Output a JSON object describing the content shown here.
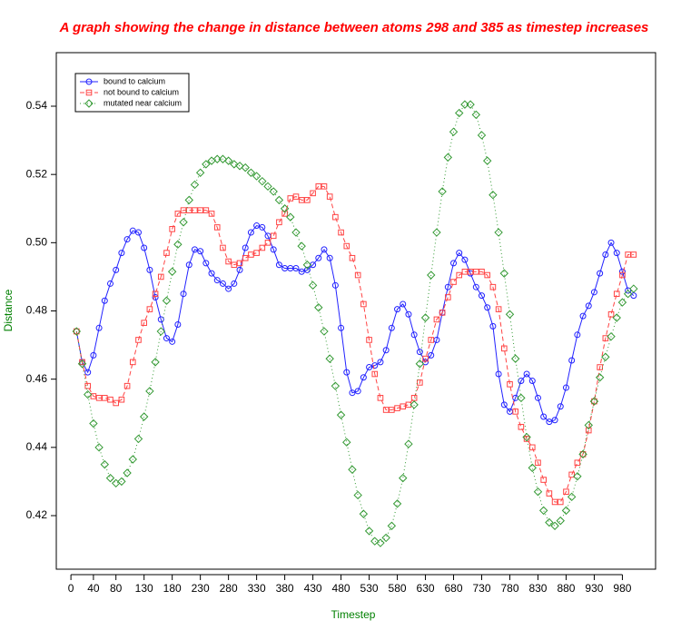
{
  "chart_data": {
    "type": "line",
    "title": "A graph showing the change in distance between atoms 298 and 385 as timestep increases",
    "x_label": "Timestep",
    "y_label": "Distance",
    "x": [
      10,
      20,
      30,
      40,
      50,
      60,
      70,
      80,
      90,
      100,
      110,
      120,
      130,
      140,
      150,
      160,
      170,
      180,
      190,
      200,
      210,
      220,
      230,
      240,
      250,
      260,
      270,
      280,
      290,
      300,
      310,
      320,
      330,
      340,
      350,
      360,
      370,
      380,
      390,
      400,
      410,
      420,
      430,
      440,
      450,
      460,
      470,
      480,
      490,
      500,
      510,
      520,
      530,
      540,
      550,
      560,
      570,
      580,
      590,
      600,
      610,
      620,
      630,
      640,
      650,
      660,
      670,
      680,
      690,
      700,
      710,
      720,
      730,
      740,
      750,
      760,
      770,
      780,
      790,
      800,
      810,
      820,
      830,
      840,
      850,
      860,
      870,
      880,
      890,
      900,
      910,
      920,
      930,
      940,
      950,
      960,
      970,
      980,
      990,
      1000
    ],
    "series": [
      {
        "name": "bound to calcium",
        "color": "#2222ff",
        "marker": "circle",
        "line_style": "solid",
        "values": [
          0.474,
          0.465,
          0.462,
          0.467,
          0.475,
          0.483,
          0.488,
          0.492,
          0.497,
          0.501,
          0.5035,
          0.503,
          0.4985,
          0.492,
          0.484,
          0.4775,
          0.472,
          0.471,
          0.476,
          0.485,
          0.4935,
          0.498,
          0.4975,
          0.494,
          0.491,
          0.489,
          0.488,
          0.4865,
          0.488,
          0.492,
          0.4985,
          0.503,
          0.505,
          0.5045,
          0.502,
          0.498,
          0.4935,
          0.4925,
          0.4925,
          0.4925,
          0.4915,
          0.492,
          0.4935,
          0.4955,
          0.498,
          0.4955,
          0.4875,
          0.475,
          0.462,
          0.456,
          0.4565,
          0.4605,
          0.4635,
          0.464,
          0.465,
          0.4685,
          0.475,
          0.4805,
          0.482,
          0.479,
          0.473,
          0.468,
          0.465,
          0.467,
          0.4715,
          0.4795,
          0.487,
          0.494,
          0.497,
          0.495,
          0.491,
          0.487,
          0.4845,
          0.481,
          0.4755,
          0.4615,
          0.4525,
          0.4505,
          0.4545,
          0.4595,
          0.4615,
          0.4595,
          0.4545,
          0.449,
          0.4475,
          0.448,
          0.452,
          0.4575,
          0.4655,
          0.473,
          0.4785,
          0.4815,
          0.4855,
          0.491,
          0.4965,
          0.5,
          0.497,
          0.4915,
          0.486,
          0.4845
        ]
      },
      {
        "name": "not bound to calcium",
        "color": "#ff4444",
        "marker": "square",
        "line_style": "dashed",
        "values": [
          0.474,
          0.465,
          0.458,
          0.455,
          0.4545,
          0.4545,
          0.454,
          0.453,
          0.454,
          0.458,
          0.465,
          0.4715,
          0.4765,
          0.4805,
          0.485,
          0.49,
          0.497,
          0.504,
          0.5085,
          0.5095,
          0.5095,
          0.5095,
          0.5095,
          0.5095,
          0.5085,
          0.5045,
          0.4985,
          0.4945,
          0.4935,
          0.494,
          0.4955,
          0.4965,
          0.497,
          0.4985,
          0.5,
          0.502,
          0.506,
          0.5085,
          0.513,
          0.5135,
          0.5125,
          0.5125,
          0.5145,
          0.5165,
          0.5165,
          0.5135,
          0.5075,
          0.503,
          0.499,
          0.4955,
          0.4905,
          0.482,
          0.4715,
          0.4615,
          0.4545,
          0.451,
          0.451,
          0.4515,
          0.452,
          0.4525,
          0.4545,
          0.459,
          0.466,
          0.4715,
          0.4775,
          0.4795,
          0.484,
          0.4885,
          0.4905,
          0.4915,
          0.4915,
          0.4915,
          0.4915,
          0.4905,
          0.487,
          0.4805,
          0.469,
          0.4585,
          0.4505,
          0.446,
          0.4425,
          0.44,
          0.4355,
          0.4305,
          0.4265,
          0.424,
          0.424,
          0.427,
          0.432,
          0.4355,
          0.438,
          0.445,
          0.4535,
          0.4635,
          0.472,
          0.479,
          0.485,
          0.4905,
          0.4965,
          0.4965
        ]
      },
      {
        "name": "mutated near calcium",
        "color": "#339933",
        "marker": "diamond",
        "line_style": "dotted",
        "values": [
          0.474,
          0.4645,
          0.4555,
          0.447,
          0.44,
          0.435,
          0.431,
          0.4295,
          0.43,
          0.4325,
          0.4365,
          0.4425,
          0.449,
          0.4565,
          0.465,
          0.474,
          0.483,
          0.4915,
          0.4995,
          0.506,
          0.5125,
          0.517,
          0.5205,
          0.523,
          0.524,
          0.5245,
          0.5245,
          0.524,
          0.523,
          0.5225,
          0.522,
          0.5205,
          0.5195,
          0.518,
          0.5165,
          0.515,
          0.5125,
          0.51,
          0.5075,
          0.503,
          0.499,
          0.4935,
          0.4875,
          0.481,
          0.474,
          0.466,
          0.458,
          0.4495,
          0.4415,
          0.4335,
          0.426,
          0.4205,
          0.4155,
          0.4125,
          0.412,
          0.4135,
          0.417,
          0.4235,
          0.431,
          0.441,
          0.4525,
          0.4645,
          0.478,
          0.4905,
          0.503,
          0.515,
          0.525,
          0.5325,
          0.538,
          0.5405,
          0.5405,
          0.5375,
          0.5315,
          0.524,
          0.514,
          0.503,
          0.491,
          0.479,
          0.466,
          0.4545,
          0.443,
          0.434,
          0.427,
          0.4215,
          0.418,
          0.417,
          0.4185,
          0.4215,
          0.4255,
          0.4315,
          0.438,
          0.4465,
          0.4535,
          0.4605,
          0.4665,
          0.4725,
          0.478,
          0.4825,
          0.485,
          0.4865
        ]
      }
    ],
    "xlim": [
      -26,
      1039
    ],
    "ylim": [
      0.4043,
      0.5557
    ],
    "xticks": [
      0,
      40,
      80,
      130,
      180,
      230,
      280,
      330,
      380,
      430,
      480,
      530,
      580,
      630,
      680,
      730,
      780,
      830,
      880,
      930,
      980
    ],
    "yticks": [
      0.42,
      0.44,
      0.46,
      0.48,
      {
        "value": 0.5,
        "label": "0.50"
      },
      0.52,
      0.54
    ],
    "legend_position": "top-left",
    "grid": false
  }
}
